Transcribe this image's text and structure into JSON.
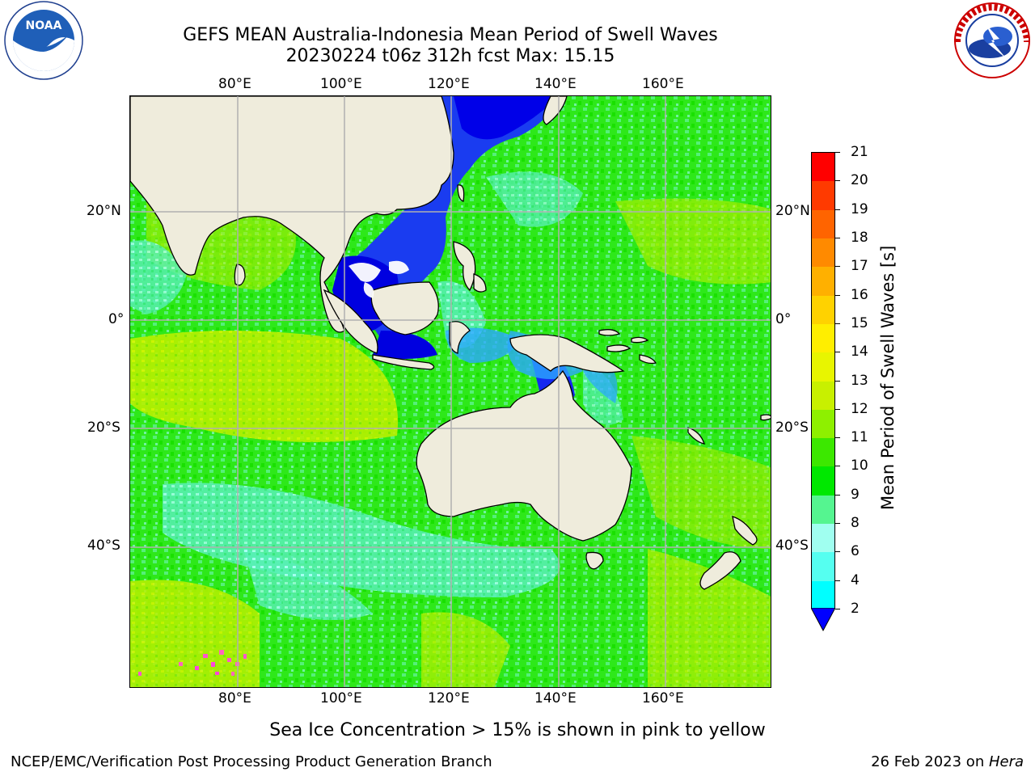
{
  "header": {
    "title_line1": "GEFS MEAN Australia-Indonesia Mean Period of Swell Waves",
    "title_line2": "20230224 t06z 312h fcst   Max: 15.15"
  },
  "logos": {
    "left": {
      "name": "NOAA",
      "ring_text": "NATIONAL OCEANIC AND ATMOSPHERIC ADMINISTRATION · U.S. DEPARTMENT OF COMMERCE"
    },
    "right": {
      "name": "NATIONAL WEATHER SERVICE"
    }
  },
  "map": {
    "lon_ticks": [
      "80°E",
      "100°E",
      "120°E",
      "140°E",
      "160°E"
    ],
    "lat_ticks_left": [
      "20°N",
      "0°",
      "20°S",
      "40°S"
    ],
    "lat_ticks_right": [
      "20°N",
      "0°",
      "20°S",
      "40°S"
    ],
    "colors": {
      "land": "#efecdc",
      "grid": "#b0b0b0",
      "coast": "#000000"
    }
  },
  "colorbar": {
    "label": "Mean Period of Swell Waves [s]",
    "ticks": [
      "21",
      "20",
      "19",
      "18",
      "17",
      "16",
      "15",
      "14",
      "13",
      "12",
      "11",
      "10",
      "9",
      "8",
      "6",
      "4",
      "2"
    ],
    "colors": [
      "#ff0000",
      "#ff3a00",
      "#ff6400",
      "#ff8a00",
      "#ffb000",
      "#ffd200",
      "#ffee00",
      "#e8f500",
      "#c8f000",
      "#8ef000",
      "#3ce800",
      "#00e800",
      "#55f590",
      "#a0fff0",
      "#55fff0",
      "#00ffff",
      "#00a8ff",
      "#0064ff"
    ],
    "extend_color": "#0000ff"
  },
  "caption": "Sea Ice Concentration > 15% is shown in pink to yellow",
  "footer": {
    "left": "NCEP/EMC/Verification Post Processing Product Generation Branch",
    "right_prefix": "26 Feb 2023 on ",
    "right_host": "Hera"
  }
}
